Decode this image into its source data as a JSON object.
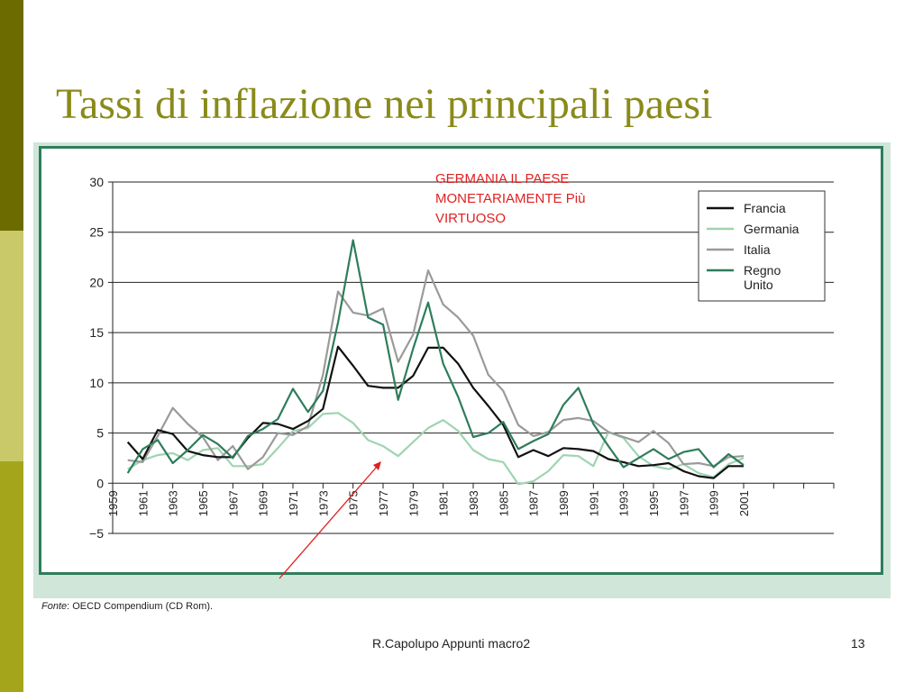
{
  "slide": {
    "title": "Tassi di inflazione nei principali paesi",
    "source_prefix": "Fonte",
    "source_text": ": OECD Compendium (CD Rom).",
    "footer": "R.Capolupo Appunti macro2",
    "page_number": "13",
    "annotation": "GERMANIA IL PAESE MONETARIAMENTE Più VIRTUOSO",
    "annotation_lines": [
      "GERMANIA IL PAESE",
      "MONETARIAMENTE Più",
      "VIRTUOSO"
    ]
  },
  "colors": {
    "title": "#8a8a1a",
    "annotation": "#e02020",
    "frame": "#2e7d5b",
    "panel": "#cfe6d8"
  },
  "chart_data": {
    "type": "line",
    "title": "",
    "xlabel": "",
    "ylabel": "",
    "ylim": [
      -5,
      30
    ],
    "xlim": [
      1959,
      2007
    ],
    "yticks": [
      -5,
      0,
      5,
      10,
      15,
      20,
      25,
      30
    ],
    "xticks": [
      "1959",
      "1961",
      "1963",
      "1965",
      "1967",
      "1969",
      "1971",
      "1973",
      "1975",
      "1977",
      "1979",
      "1981",
      "1983",
      "1985",
      "1987",
      "1989",
      "1991",
      "1993",
      "1995",
      "1997",
      "1999",
      "2001"
    ],
    "grid": "horizontal",
    "legend_position": "top-right",
    "x": [
      1960,
      1961,
      1962,
      1963,
      1964,
      1965,
      1966,
      1967,
      1968,
      1969,
      1970,
      1971,
      1972,
      1973,
      1974,
      1975,
      1976,
      1977,
      1978,
      1979,
      1980,
      1981,
      1982,
      1983,
      1984,
      1985,
      1986,
      1987,
      1988,
      1989,
      1990,
      1991,
      1992,
      1993,
      1994,
      1995,
      1996,
      1997,
      1998,
      1999,
      2000,
      2001
    ],
    "series": [
      {
        "name": "Francia",
        "color": "#111111",
        "values": [
          4.1,
          2.4,
          5.3,
          4.9,
          3.2,
          2.8,
          2.6,
          2.6,
          4.5,
          6.0,
          5.9,
          5.4,
          6.2,
          7.4,
          13.6,
          11.7,
          9.7,
          9.5,
          9.5,
          10.7,
          13.5,
          13.5,
          11.9,
          9.5,
          7.7,
          5.8,
          2.6,
          3.3,
          2.7,
          3.5,
          3.4,
          3.2,
          2.4,
          2.1,
          1.7,
          1.8,
          2.0,
          1.2,
          0.7,
          0.5,
          1.7,
          1.7
        ]
      },
      {
        "name": "Germania",
        "color": "#9fd4b2",
        "values": [
          1.4,
          2.3,
          2.8,
          3.0,
          2.3,
          3.3,
          3.5,
          1.7,
          1.7,
          1.9,
          3.5,
          5.2,
          5.5,
          6.9,
          7.0,
          6.0,
          4.3,
          3.7,
          2.7,
          4.1,
          5.5,
          6.3,
          5.2,
          3.3,
          2.4,
          2.1,
          -0.1,
          0.2,
          1.2,
          2.8,
          2.7,
          1.7,
          5.1,
          4.5,
          2.7,
          1.7,
          1.4,
          1.9,
          1.0,
          0.6,
          1.9,
          2.5
        ]
      },
      {
        "name": "Italia",
        "color": "#9a9a9a",
        "values": [
          2.3,
          2.1,
          4.7,
          7.5,
          5.9,
          4.6,
          2.3,
          3.7,
          1.4,
          2.6,
          5.0,
          4.8,
          5.7,
          10.8,
          19.1,
          17.0,
          16.7,
          17.4,
          12.1,
          14.8,
          21.2,
          17.8,
          16.5,
          14.7,
          10.8,
          9.2,
          5.8,
          4.7,
          5.1,
          6.3,
          6.5,
          6.2,
          5.1,
          4.6,
          4.1,
          5.2,
          4.0,
          1.9,
          2.0,
          1.7,
          2.6,
          2.7
        ]
      },
      {
        "name": "Regno Unito",
        "legend_lines": [
          "Regno",
          "Unito"
        ],
        "color": "#2e7d5b",
        "values": [
          1.0,
          3.4,
          4.3,
          2.0,
          3.3,
          4.8,
          3.9,
          2.5,
          4.7,
          5.4,
          6.4,
          9.4,
          7.1,
          9.2,
          16.0,
          24.2,
          16.5,
          15.8,
          8.3,
          13.4,
          18.0,
          11.9,
          8.6,
          4.6,
          5.0,
          6.1,
          3.4,
          4.2,
          4.9,
          7.8,
          9.5,
          5.9,
          3.7,
          1.6,
          2.5,
          3.4,
          2.4,
          3.1,
          3.4,
          1.6,
          2.9,
          1.8
        ]
      }
    ]
  }
}
